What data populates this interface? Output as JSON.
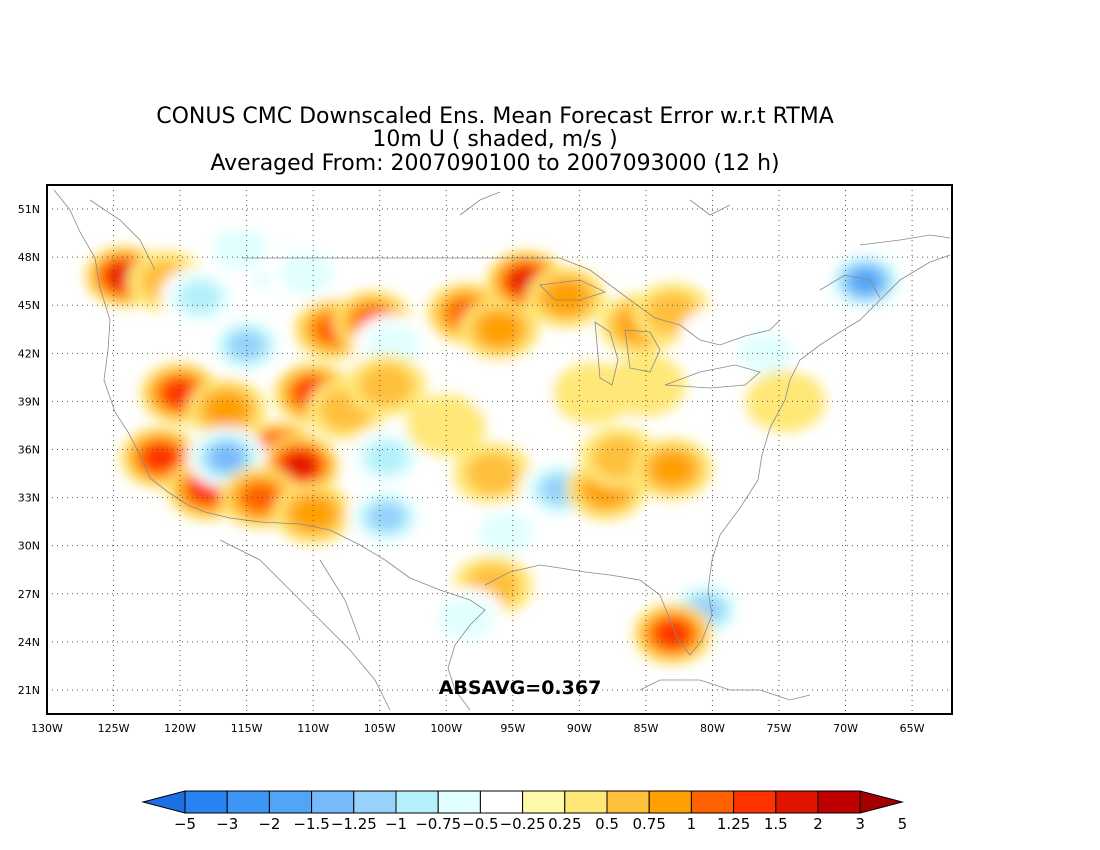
{
  "title": {
    "line1": "CONUS CMC Downscaled Ens. Mean Forecast Error w.r.t RTMA",
    "line2": "10m U ( shaded, m/s )",
    "line3": "Averaged From: 2007090100 to 2007093000 (12 h)"
  },
  "map": {
    "lon_range": [
      -130,
      -62
    ],
    "lat_range": [
      19.5,
      52.5
    ],
    "grid": "dotted",
    "lon_ticks": [
      {
        "value": -130,
        "label": "130W"
      },
      {
        "value": -125,
        "label": "125W"
      },
      {
        "value": -120,
        "label": "120W"
      },
      {
        "value": -115,
        "label": "115W"
      },
      {
        "value": -110,
        "label": "110W"
      },
      {
        "value": -105,
        "label": "105W"
      },
      {
        "value": -100,
        "label": "100W"
      },
      {
        "value": -95,
        "label": "95W"
      },
      {
        "value": -90,
        "label": "90W"
      },
      {
        "value": -85,
        "label": "85W"
      },
      {
        "value": -80,
        "label": "80W"
      },
      {
        "value": -75,
        "label": "75W"
      },
      {
        "value": -70,
        "label": "70W"
      },
      {
        "value": -65,
        "label": "65W"
      }
    ],
    "lat_ticks": [
      {
        "value": 51,
        "label": "51N"
      },
      {
        "value": 48,
        "label": "48N"
      },
      {
        "value": 45,
        "label": "45N"
      },
      {
        "value": 42,
        "label": "42N"
      },
      {
        "value": 39,
        "label": "39N"
      },
      {
        "value": 36,
        "label": "36N"
      },
      {
        "value": 33,
        "label": "33N"
      },
      {
        "value": 30,
        "label": "30N"
      },
      {
        "value": 27,
        "label": "27N"
      },
      {
        "value": 24,
        "label": "24N"
      },
      {
        "value": 21,
        "label": "21N"
      }
    ],
    "absavg_label": "ABSAVG=0.367"
  },
  "colorbar": {
    "colors": [
      "#1e6ee6",
      "#2882f0",
      "#3c96f5",
      "#50a5f5",
      "#78b9fa",
      "#96d2fa",
      "#b4f0fa",
      "#e1ffff",
      "#ffffff",
      "#fffaaa",
      "#ffe878",
      "#ffc03c",
      "#ffa000",
      "#ff6000",
      "#ff3200",
      "#e11400",
      "#c00000",
      "#a50000"
    ],
    "labels": [
      "−5",
      "−3",
      "−2",
      "−1.5",
      "−1.25",
      "−1",
      "−0.75",
      "−0.5",
      "−0.25",
      "0.25",
      "0.5",
      "0.75",
      "1",
      "1.25",
      "1.5",
      "2",
      "3",
      "5"
    ]
  },
  "chart_data": {
    "type": "heatmap",
    "variable": "10m U ( shaded, m/s )",
    "blobs": [
      {
        "lon": -124.2,
        "lat": 46.8,
        "value": 1.6
      },
      {
        "lon": -121.0,
        "lat": 46.5,
        "value": 0.6
      },
      {
        "lon": -118.5,
        "lat": 45.5,
        "value": -0.9
      },
      {
        "lon": -113.0,
        "lat": 47.5,
        "value": -0.8
      },
      {
        "lon": -115.5,
        "lat": 48.5,
        "value": -0.6
      },
      {
        "lon": -110.5,
        "lat": 47.0,
        "value": -0.5
      },
      {
        "lon": -115.0,
        "lat": 42.5,
        "value": -1.0
      },
      {
        "lon": -108.5,
        "lat": 43.5,
        "value": 1.2
      },
      {
        "lon": -105.5,
        "lat": 44.0,
        "value": 1.0
      },
      {
        "lon": -104.0,
        "lat": 42.5,
        "value": -0.5
      },
      {
        "lon": -98.5,
        "lat": 44.5,
        "value": 1.0
      },
      {
        "lon": -96.0,
        "lat": 43.5,
        "value": 0.8
      },
      {
        "lon": -94.0,
        "lat": 46.5,
        "value": 1.9
      },
      {
        "lon": -91.0,
        "lat": 45.5,
        "value": 0.8
      },
      {
        "lon": -85.5,
        "lat": 43.8,
        "value": 0.9
      },
      {
        "lon": -83.0,
        "lat": 44.5,
        "value": 0.5
      },
      {
        "lon": -79.5,
        "lat": 43.0,
        "value": -0.4
      },
      {
        "lon": -76.0,
        "lat": 42.0,
        "value": -0.5
      },
      {
        "lon": -68.5,
        "lat": 46.5,
        "value": -1.6
      },
      {
        "lon": -120.0,
        "lat": 39.5,
        "value": 1.3
      },
      {
        "lon": -116.5,
        "lat": 38.5,
        "value": 0.9
      },
      {
        "lon": -112.5,
        "lat": 35.8,
        "value": 2.0
      },
      {
        "lon": -111.0,
        "lat": 35.0,
        "value": 1.5
      },
      {
        "lon": -110.0,
        "lat": 39.5,
        "value": 1.3
      },
      {
        "lon": -107.5,
        "lat": 38.5,
        "value": 0.6
      },
      {
        "lon": -104.5,
        "lat": 40.0,
        "value": 0.7
      },
      {
        "lon": -121.5,
        "lat": 35.5,
        "value": 1.4
      },
      {
        "lon": -118.0,
        "lat": 33.5,
        "value": 1.3
      },
      {
        "lon": -116.5,
        "lat": 35.5,
        "value": -1.4
      },
      {
        "lon": -114.0,
        "lat": 33.0,
        "value": 1.0
      },
      {
        "lon": -110.0,
        "lat": 32.0,
        "value": 0.8
      },
      {
        "lon": -104.5,
        "lat": 35.5,
        "value": -0.8
      },
      {
        "lon": -104.5,
        "lat": 31.8,
        "value": -1.0
      },
      {
        "lon": -96.5,
        "lat": 34.5,
        "value": 0.5
      },
      {
        "lon": -95.5,
        "lat": 30.8,
        "value": -0.6
      },
      {
        "lon": -91.5,
        "lat": 33.5,
        "value": -1.0
      },
      {
        "lon": -88.0,
        "lat": 33.5,
        "value": 0.8
      },
      {
        "lon": -87.0,
        "lat": 35.5,
        "value": 0.6
      },
      {
        "lon": -83.0,
        "lat": 34.8,
        "value": 0.9
      },
      {
        "lon": -89.0,
        "lat": 39.5,
        "value": 0.4
      },
      {
        "lon": -85.0,
        "lat": 40.0,
        "value": 0.4
      },
      {
        "lon": -74.5,
        "lat": 39.0,
        "value": 0.4
      },
      {
        "lon": -96.5,
        "lat": 27.5,
        "value": 0.5
      },
      {
        "lon": -98.5,
        "lat": 25.5,
        "value": -0.5
      },
      {
        "lon": -80.5,
        "lat": 26.0,
        "value": -1.2
      },
      {
        "lon": -83.0,
        "lat": 24.5,
        "value": 1.3
      },
      {
        "lon": -100.0,
        "lat": 37.5,
        "value": 0.4
      },
      {
        "lon": -95.0,
        "lat": 39.5,
        "value": -0.4
      }
    ]
  }
}
